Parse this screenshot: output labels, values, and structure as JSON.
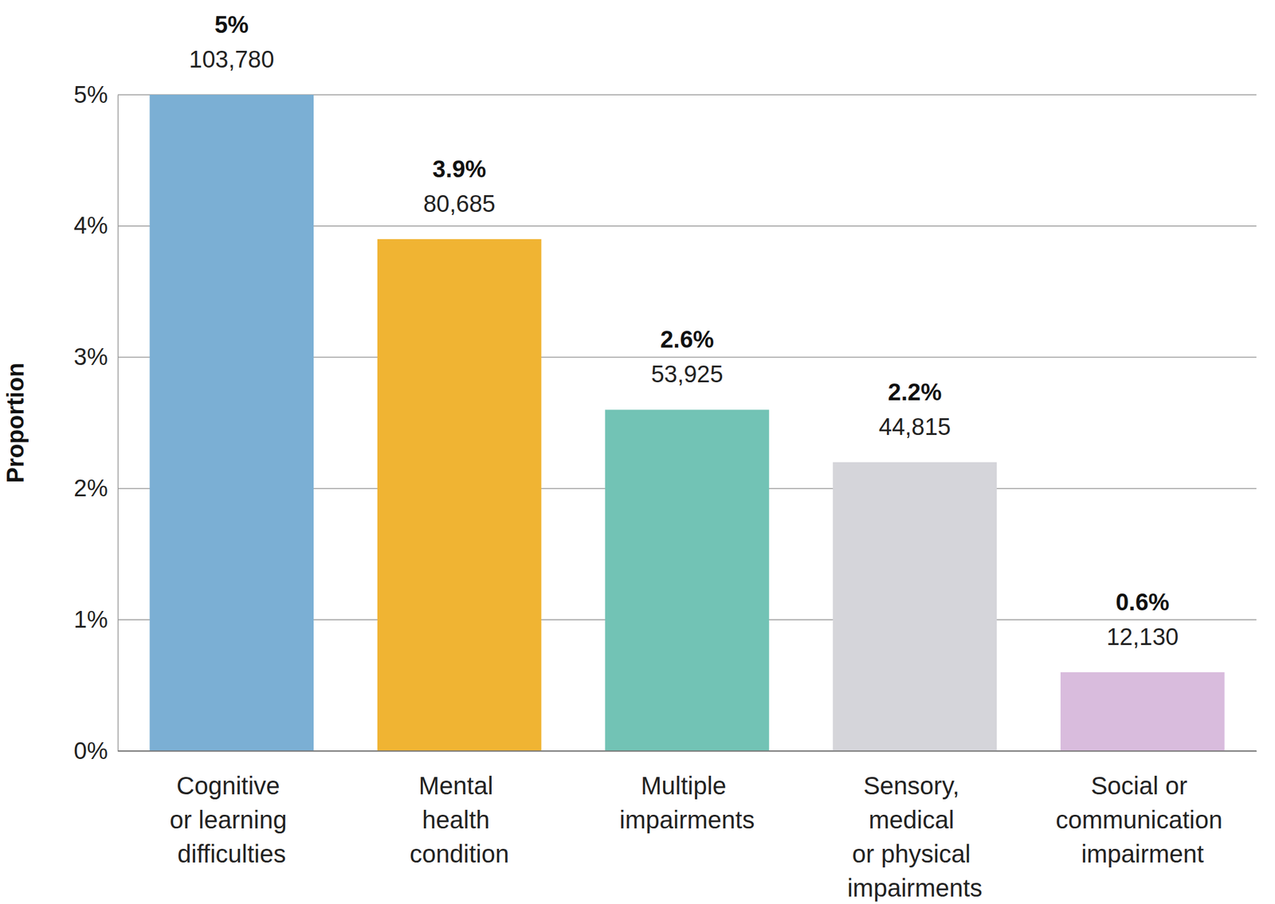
{
  "chart_data": {
    "type": "bar",
    "ylabel": "Proportion",
    "categories": [
      "Cognitive\nor learning\ndifficulties",
      "Mental\nhealth\ncondition",
      "Multiple\nimpairments",
      "Sensory,\nmedical\nor physical\nimpairments",
      "Social or\ncommunication\nimpairment"
    ],
    "values": [
      5,
      3.9,
      2.6,
      2.2,
      0.6
    ],
    "value_labels": [
      "5%",
      "3.9%",
      "2.6%",
      "2.2%",
      "0.6%"
    ],
    "counts": [
      103780,
      80685,
      53925,
      44815,
      12130
    ],
    "colors": [
      "#7bafd4",
      "#f0b433",
      "#72c3b5",
      "#d5d5da",
      "#d9bcdd"
    ],
    "ylim": [
      0,
      5
    ],
    "yticks": [
      {
        "value": 0,
        "label": "0%"
      },
      {
        "value": 1,
        "label": "1%"
      },
      {
        "value": 2,
        "label": "2%"
      },
      {
        "value": 3,
        "label": "3%"
      },
      {
        "value": 4,
        "label": "4%"
      },
      {
        "value": 5,
        "label": "5%"
      }
    ],
    "grid": true,
    "data_labels": true
  }
}
